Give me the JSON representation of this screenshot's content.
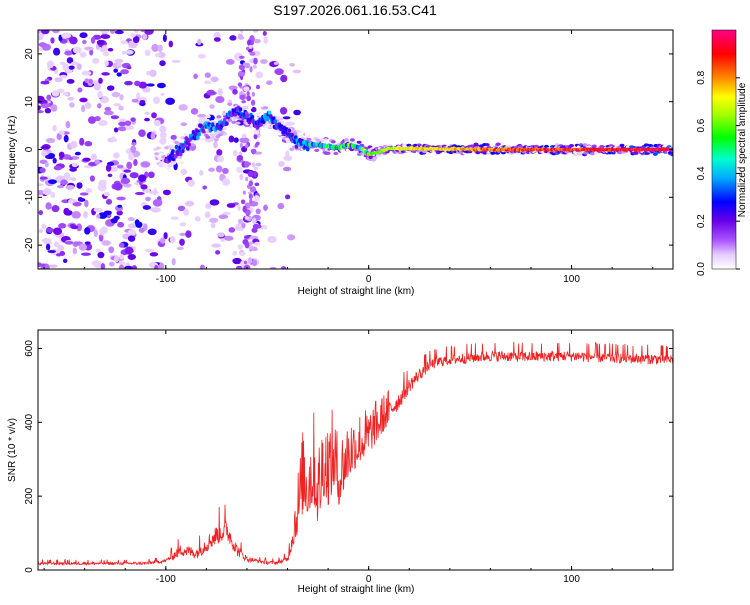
{
  "title": "S197.2026.061.16.53.C41",
  "chart_data": [
    {
      "type": "heatmap",
      "name": "spectrogram",
      "xlabel": "Height of straight line (km)",
      "ylabel": "Frequency (Hz)",
      "xlim": [
        -163,
        150
      ],
      "ylim": [
        -25,
        25
      ],
      "xticks": [
        -100,
        0,
        100
      ],
      "yticks": [
        -20,
        -10,
        0,
        10,
        20
      ],
      "colorbar": {
        "label": "Normalized spectral amplitude",
        "range": [
          0,
          1
        ],
        "ticks": [
          0.0,
          0.2,
          0.4,
          0.6,
          0.8
        ]
      },
      "ridge": {
        "description": "frequency of peak amplitude vs height",
        "x": [
          -98,
          -90,
          -85,
          -80,
          -75,
          -72,
          -68,
          -64,
          -60,
          -55,
          -50,
          -45,
          -40,
          -36,
          -33,
          -30,
          -25,
          -20,
          -15,
          -10,
          -5,
          0,
          5,
          10,
          20,
          40,
          60,
          80,
          100,
          120,
          150
        ],
        "y": [
          -2,
          1,
          3,
          5,
          4.5,
          5.5,
          7.5,
          8,
          7,
          5.5,
          7,
          5,
          3.5,
          2,
          1.5,
          1,
          1,
          0.7,
          0.3,
          1,
          0.5,
          -1,
          -0.5,
          0.2,
          0.2,
          0.1,
          0,
          0,
          0,
          0,
          0
        ],
        "amplitude": [
          0.25,
          0.3,
          0.3,
          0.35,
          0.35,
          0.3,
          0.3,
          0.3,
          0.25,
          0.3,
          0.35,
          0.3,
          0.25,
          0.3,
          0.35,
          0.4,
          0.45,
          0.5,
          0.5,
          0.55,
          0.6,
          0.6,
          0.65,
          0.7,
          0.75,
          0.8,
          0.85,
          0.9,
          0.92,
          0.95,
          1.0
        ]
      }
    },
    {
      "type": "line",
      "name": "snr",
      "xlabel": "Height of straight line (km)",
      "ylabel": "SNR (10 * v/v)",
      "xlim": [
        -163,
        150
      ],
      "ylim": [
        0,
        650
      ],
      "xticks": [
        -100,
        0,
        100
      ],
      "yticks": [
        0,
        200,
        400,
        600
      ],
      "color": "#ee2222",
      "envelope": {
        "x": [
          -163,
          -110,
          -100,
          -92,
          -85,
          -80,
          -75,
          -70,
          -65,
          -60,
          -55,
          -50,
          -45,
          -40,
          -35,
          -32,
          -30,
          -27,
          -25,
          -22,
          -20,
          -17,
          -15,
          -10,
          -5,
          0,
          5,
          10,
          15,
          20,
          25,
          30,
          35,
          40,
          50,
          60,
          80,
          100,
          120,
          150
        ],
        "y": [
          18,
          18,
          25,
          55,
          45,
          70,
          95,
          110,
          55,
          30,
          25,
          20,
          20,
          30,
          160,
          250,
          230,
          270,
          200,
          290,
          260,
          300,
          240,
          310,
          340,
          360,
          395,
          430,
          460,
          500,
          530,
          555,
          565,
          570,
          575,
          580,
          578,
          580,
          575,
          570
        ],
        "noise": [
          8,
          8,
          10,
          35,
          30,
          45,
          55,
          60,
          35,
          15,
          10,
          10,
          10,
          15,
          110,
          150,
          150,
          160,
          140,
          160,
          150,
          140,
          120,
          110,
          90,
          80,
          70,
          60,
          50,
          40,
          35,
          30,
          30,
          30,
          30,
          30,
          30,
          30,
          30,
          30
        ]
      }
    }
  ]
}
